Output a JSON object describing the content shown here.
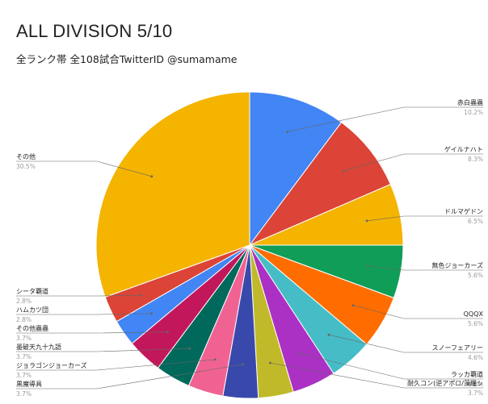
{
  "header": {
    "title": "ALL DIVISION 5/10",
    "subtitle": "全ランク帯 全108試合TwitterID @sumamame"
  },
  "chart_data": {
    "type": "pie",
    "title": "ALL DIVISION 5/10",
    "subtitle": "全ランク帯 全108試合TwitterID @sumamame",
    "legend": "none",
    "slices": [
      {
        "label": "赤白蟲蟲",
        "value": 10.2,
        "pct_label": "10.2%",
        "color": "#4285f4"
      },
      {
        "label": "ゲイルナハト",
        "value": 8.3,
        "pct_label": "8.3%",
        "color": "#db4437"
      },
      {
        "label": "ドルマゲドン",
        "value": 6.5,
        "pct_label": "6.5%",
        "color": "#f4b400"
      },
      {
        "label": "無色ジョーカーズ",
        "value": 5.6,
        "pct_label": "5.6%",
        "color": "#0f9d58"
      },
      {
        "label": "QQQX",
        "value": 5.6,
        "pct_label": "5.6%",
        "color": "#ff6d00"
      },
      {
        "label": "スノーフェアリー",
        "value": 4.6,
        "pct_label": "4.6%",
        "color": "#46bdc6"
      },
      {
        "label": "ラッカ覇道",
        "value": 4.6,
        "pct_label": "4.6%",
        "color": "#ab30c4"
      },
      {
        "label": "耐久コン(逆アポロ/藻羅シ",
        "value": 3.7,
        "pct_label": "3.7%",
        "color": "#c0ba2a"
      },
      {
        "label": "黒魔導具",
        "value": 3.7,
        "pct_label": "3.7%",
        "color": "#3949ab"
      },
      {
        "label": "ジョラゴンジョーカーズ",
        "value": 3.7,
        "pct_label": "3.7%",
        "color": "#f06292"
      },
      {
        "label": "墨破天九十九語",
        "value": 3.7,
        "pct_label": "3.7%",
        "color": "#00695c"
      },
      {
        "label": "その他蟲蟲",
        "value": 3.7,
        "pct_label": "3.7%",
        "color": "#c2185b"
      },
      {
        "label": "ハムカツ団",
        "value": 2.8,
        "pct_label": "2.8%",
        "color": "#4285f4"
      },
      {
        "label": "シータ覇道",
        "value": 2.8,
        "pct_label": "2.8%",
        "color": "#db4437"
      },
      {
        "label": "その他",
        "value": 30.5,
        "pct_label": "30.5%",
        "color": "#f4b400"
      }
    ]
  }
}
